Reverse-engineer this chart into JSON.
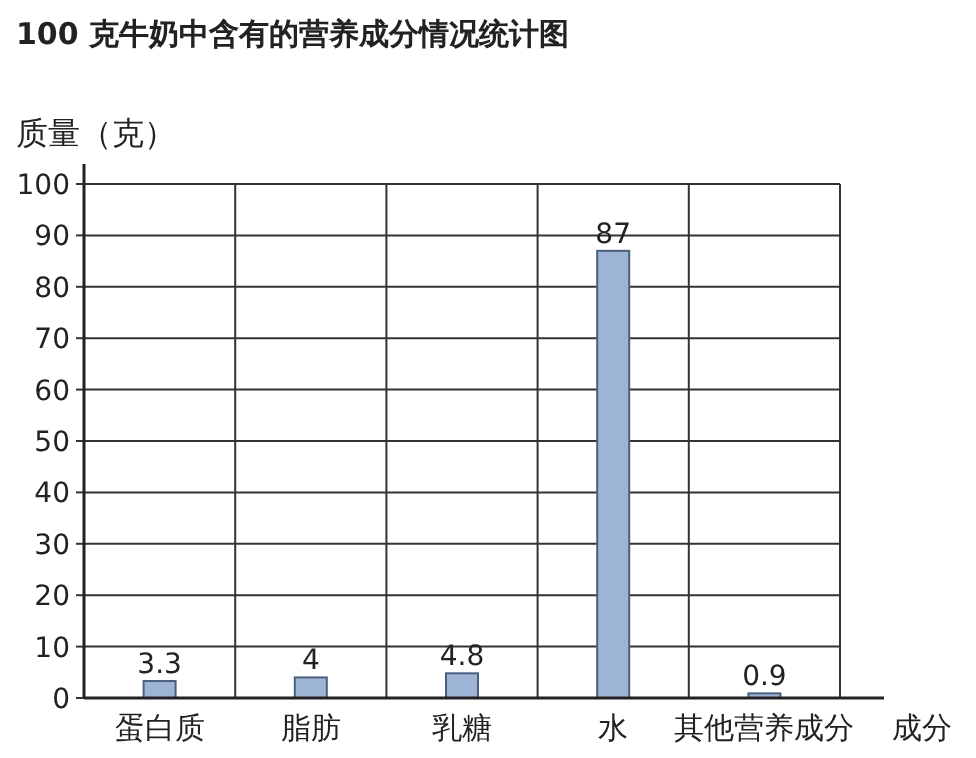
{
  "chart_data": {
    "type": "bar",
    "title": "100 克牛奶中含有的营养成分情况统计图",
    "ylabel": "质量（克）",
    "xlabel": "成分",
    "categories": [
      "蛋白质",
      "脂肪",
      "乳糖",
      "水",
      "其他营养成分"
    ],
    "values": [
      3.3,
      4,
      4.8,
      87,
      0.9
    ],
    "value_labels": [
      "3.3",
      "4",
      "4.8",
      "87",
      "0.9"
    ],
    "color": "#9db4d4",
    "ylim": [
      0,
      100
    ],
    "yticks": [
      0,
      10,
      20,
      30,
      40,
      50,
      60,
      70,
      80,
      90,
      100
    ],
    "grid": true
  }
}
